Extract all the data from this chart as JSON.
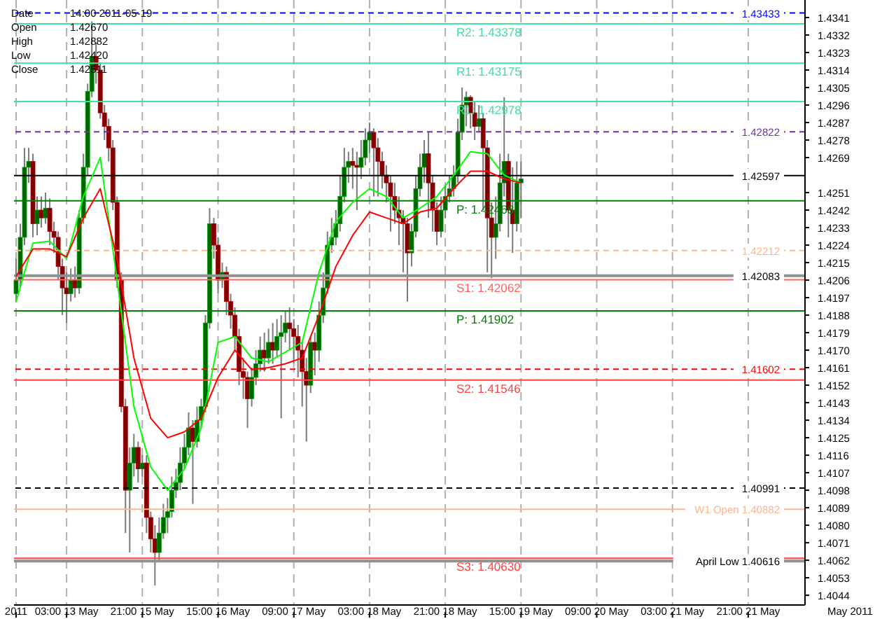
{
  "chart_data": {
    "type": "candlestick",
    "categories": [
      "2011",
      null,
      null,
      null,
      null,
      null,
      null,
      null,
      null,
      null,
      null,
      null,
      "03:00 13 May",
      null,
      null,
      null,
      null,
      null,
      null,
      null,
      null,
      null,
      null,
      null,
      null,
      null,
      null,
      null,
      null,
      null,
      "21:00 15 May",
      null,
      null,
      null,
      null,
      null,
      null,
      null,
      null,
      null,
      null,
      null,
      null,
      null,
      null,
      null,
      null,
      null,
      "15:00 16 May",
      null,
      null,
      null,
      null,
      null,
      null,
      null,
      null,
      null,
      null,
      null,
      null,
      null,
      null,
      null,
      null,
      null,
      "09:00 17 May",
      null,
      null,
      null,
      null,
      null,
      null,
      null,
      null,
      null,
      null,
      null,
      null,
      null,
      null,
      null,
      null,
      null,
      "03:00 18 May",
      null,
      null,
      null,
      null,
      null,
      null,
      null,
      null,
      null,
      null,
      null,
      null,
      null,
      null,
      null,
      null,
      null,
      "21:00 18 May",
      null,
      null,
      null,
      null,
      null,
      null,
      null,
      null,
      null,
      null,
      null,
      null,
      null,
      null,
      null,
      null,
      null,
      "15:00 19 May",
      null,
      null,
      null,
      null,
      null,
      null,
      null,
      null,
      null,
      null,
      null,
      null,
      null,
      null,
      null,
      null,
      null,
      "09:00 20 May",
      null,
      null,
      null,
      null,
      null,
      null,
      null,
      null,
      null,
      null,
      null,
      null,
      null,
      null,
      null,
      null,
      null,
      "03:00 21 May",
      null,
      null,
      null,
      null,
      null,
      null,
      null,
      null,
      null,
      null,
      null,
      null,
      null,
      null,
      null,
      null,
      null,
      "21:00 21 May",
      null,
      null,
      null,
      null,
      null,
      null,
      null,
      null,
      null,
      null,
      null,
      null,
      null
    ],
    "ohlc": [
      [
        1.4199,
        1.4217,
        1.4195,
        1.4206
      ],
      [
        1.4206,
        1.4235,
        1.4202,
        1.4228
      ],
      [
        1.4228,
        1.4274,
        1.4224,
        1.4264
      ],
      [
        1.4264,
        1.4274,
        1.4256,
        1.4267
      ],
      [
        1.4267,
        1.4271,
        1.4228,
        1.4235
      ],
      [
        1.4235,
        1.4249,
        1.4229,
        1.4242
      ],
      [
        1.4242,
        1.4249,
        1.4233,
        1.4238
      ],
      [
        1.4238,
        1.4251,
        1.4235,
        1.4243
      ],
      [
        1.4243,
        1.4248,
        1.4224,
        1.4231
      ],
      [
        1.4231,
        1.4236,
        1.422,
        1.4228
      ],
      [
        1.4228,
        1.4231,
        1.4206,
        1.4213
      ],
      [
        1.4213,
        1.4217,
        1.4188,
        1.4202
      ],
      [
        1.4202,
        1.421,
        1.4184,
        1.4199
      ],
      [
        1.4199,
        1.4212,
        1.4195,
        1.4206
      ],
      [
        1.4206,
        1.4213,
        1.4197,
        1.4202
      ],
      [
        1.4202,
        1.4242,
        1.4199,
        1.4238
      ],
      [
        1.4238,
        1.4271,
        1.4235,
        1.4264
      ],
      [
        1.4264,
        1.4307,
        1.426,
        1.4303
      ],
      [
        1.4303,
        1.4339,
        1.43,
        1.4321
      ],
      [
        1.4321,
        1.4328,
        1.4307,
        1.4314
      ],
      [
        1.4314,
        1.4318,
        1.4289,
        1.4292
      ],
      [
        1.4292,
        1.4296,
        1.4278,
        1.4285
      ],
      [
        1.4285,
        1.4289,
        1.4267,
        1.4274
      ],
      [
        1.4274,
        1.4278,
        1.4242,
        1.4246
      ],
      [
        1.4246,
        1.4249,
        1.4202,
        1.4206
      ],
      [
        1.4206,
        1.421,
        1.4138,
        1.4141
      ],
      [
        1.4141,
        1.4145,
        1.4076,
        1.4098
      ],
      [
        1.4098,
        1.412,
        1.4066,
        1.4112
      ],
      [
        1.4112,
        1.4127,
        1.4105,
        1.412
      ],
      [
        1.412,
        1.4123,
        1.4102,
        1.4109
      ],
      [
        1.4109,
        1.4116,
        1.4105,
        1.4112
      ],
      [
        1.4112,
        1.4116,
        1.4076,
        1.4084
      ],
      [
        1.4084,
        1.4087,
        1.4066,
        1.4073
      ],
      [
        1.4073,
        1.408,
        1.4049,
        1.4066
      ],
      [
        1.4066,
        1.4084,
        1.4062,
        1.4076
      ],
      [
        1.4076,
        1.4091,
        1.4073,
        1.4084
      ],
      [
        1.4084,
        1.4094,
        1.4076,
        1.4087
      ],
      [
        1.4087,
        1.4105,
        1.4084,
        1.4098
      ],
      [
        1.4098,
        1.4109,
        1.4094,
        1.4102
      ],
      [
        1.4102,
        1.412,
        1.4098,
        1.4112
      ],
      [
        1.4112,
        1.4127,
        1.4109,
        1.412
      ],
      [
        1.412,
        1.4138,
        1.4116,
        1.413
      ],
      [
        1.413,
        1.4134,
        1.4091,
        1.4123
      ],
      [
        1.4123,
        1.4141,
        1.412,
        1.4134
      ],
      [
        1.4134,
        1.4145,
        1.413,
        1.4141
      ],
      [
        1.4141,
        1.4188,
        1.4138,
        1.4184
      ],
      [
        1.4184,
        1.4243,
        1.4181,
        1.4235
      ],
      [
        1.4235,
        1.4238,
        1.4217,
        1.4224
      ],
      [
        1.4224,
        1.4228,
        1.4199,
        1.4206
      ],
      [
        1.4206,
        1.4215,
        1.4202,
        1.421
      ],
      [
        1.421,
        1.4213,
        1.4188,
        1.4195
      ],
      [
        1.4195,
        1.4199,
        1.4181,
        1.4188
      ],
      [
        1.4188,
        1.4192,
        1.417,
        1.4177
      ],
      [
        1.4177,
        1.4181,
        1.4152,
        1.4159
      ],
      [
        1.4159,
        1.4166,
        1.4145,
        1.4156
      ],
      [
        1.4156,
        1.4159,
        1.413,
        1.4145
      ],
      [
        1.4145,
        1.4161,
        1.4141,
        1.4156
      ],
      [
        1.4156,
        1.417,
        1.4152,
        1.4163
      ],
      [
        1.4163,
        1.4177,
        1.4159,
        1.417
      ],
      [
        1.417,
        1.4179,
        1.4159,
        1.4166
      ],
      [
        1.4166,
        1.4181,
        1.4163,
        1.4174
      ],
      [
        1.4174,
        1.4184,
        1.4163,
        1.417
      ],
      [
        1.417,
        1.4186,
        1.4166,
        1.4177
      ],
      [
        1.4177,
        1.4188,
        1.4135,
        1.4179
      ],
      [
        1.4179,
        1.419,
        1.4174,
        1.4184
      ],
      [
        1.4184,
        1.4192,
        1.417,
        1.4181
      ],
      [
        1.4181,
        1.4186,
        1.4163,
        1.4177
      ],
      [
        1.4177,
        1.4183,
        1.4156,
        1.417
      ],
      [
        1.417,
        1.4174,
        1.4141,
        1.4159
      ],
      [
        1.4159,
        1.4166,
        1.4123,
        1.4152
      ],
      [
        1.4152,
        1.4177,
        1.4148,
        1.4174
      ],
      [
        1.4174,
        1.4179,
        1.4157,
        1.417
      ],
      [
        1.417,
        1.4195,
        1.4164,
        1.4188
      ],
      [
        1.4188,
        1.421,
        1.4184,
        1.4202
      ],
      [
        1.4202,
        1.4231,
        1.4199,
        1.4224
      ],
      [
        1.4224,
        1.4238,
        1.422,
        1.4228
      ],
      [
        1.4228,
        1.4242,
        1.4224,
        1.4235
      ],
      [
        1.4235,
        1.426,
        1.4231,
        1.4249
      ],
      [
        1.4249,
        1.4274,
        1.4246,
        1.4264
      ],
      [
        1.4264,
        1.4272,
        1.4256,
        1.4267
      ],
      [
        1.4267,
        1.4274,
        1.4253,
        1.4265
      ],
      [
        1.4265,
        1.4272,
        1.4242,
        1.4264
      ],
      [
        1.4264,
        1.4278,
        1.4258,
        1.4269
      ],
      [
        1.4269,
        1.4284,
        1.4265,
        1.4278
      ],
      [
        1.4278,
        1.4287,
        1.4271,
        1.4282
      ],
      [
        1.4282,
        1.4284,
        1.4249,
        1.4274
      ],
      [
        1.4274,
        1.4279,
        1.4249,
        1.4267
      ],
      [
        1.4267,
        1.4272,
        1.4253,
        1.426
      ],
      [
        1.426,
        1.4265,
        1.4246,
        1.4256
      ],
      [
        1.4256,
        1.426,
        1.4231,
        1.4249
      ],
      [
        1.4249,
        1.4256,
        1.4235,
        1.4242
      ],
      [
        1.4242,
        1.4249,
        1.4224,
        1.4238
      ],
      [
        1.4238,
        1.4242,
        1.421,
        1.4235
      ],
      [
        1.4235,
        1.4238,
        1.4195,
        1.422
      ],
      [
        1.422,
        1.4235,
        1.4213,
        1.4231
      ],
      [
        1.4231,
        1.426,
        1.4228,
        1.4253
      ],
      [
        1.4253,
        1.4271,
        1.4249,
        1.4264
      ],
      [
        1.4264,
        1.4278,
        1.4256,
        1.4271
      ],
      [
        1.4271,
        1.4282,
        1.4238,
        1.4256
      ],
      [
        1.4256,
        1.426,
        1.4231,
        1.4242
      ],
      [
        1.4242,
        1.4246,
        1.4224,
        1.4231
      ],
      [
        1.4231,
        1.4249,
        1.4228,
        1.4242
      ],
      [
        1.4242,
        1.4255,
        1.4238,
        1.4249
      ],
      [
        1.4249,
        1.426,
        1.4246,
        1.4253
      ],
      [
        1.4253,
        1.4265,
        1.4249,
        1.426
      ],
      [
        1.426,
        1.4289,
        1.4256,
        1.4282
      ],
      [
        1.4282,
        1.4305,
        1.4278,
        1.4296
      ],
      [
        1.4296,
        1.4303,
        1.4285,
        1.43
      ],
      [
        1.43,
        1.4301,
        1.4284,
        1.4292
      ],
      [
        1.4292,
        1.4298,
        1.4278,
        1.4285
      ],
      [
        1.4285,
        1.4296,
        1.4282,
        1.4289
      ],
      [
        1.4289,
        1.4292,
        1.4242,
        1.4274
      ],
      [
        1.4274,
        1.4278,
        1.421,
        1.4238
      ],
      [
        1.4238,
        1.4246,
        1.4207,
        1.4228
      ],
      [
        1.4228,
        1.4249,
        1.4217,
        1.4235
      ],
      [
        1.4235,
        1.4271,
        1.4231,
        1.4256
      ],
      [
        1.4256,
        1.43,
        1.4249,
        1.4267
      ],
      [
        1.4267,
        1.4271,
        1.4228,
        1.4242
      ],
      [
        1.4242,
        1.4264,
        1.422,
        1.4235
      ],
      [
        1.4235,
        1.4267,
        1.4231,
        1.4256
      ],
      [
        1.4256,
        1.4267,
        1.4238,
        1.4258
      ],
      null,
      null,
      null,
      null,
      null,
      null,
      null,
      null,
      null,
      null,
      null,
      null,
      null,
      null,
      null,
      null,
      null,
      null,
      null,
      null,
      null,
      null,
      null,
      null,
      null,
      null,
      null,
      null,
      null,
      null,
      null,
      null,
      null,
      null,
      null,
      null,
      null,
      null,
      null,
      null,
      null,
      null,
      null,
      null,
      null,
      null,
      null,
      null,
      null,
      null,
      null,
      null,
      null,
      null,
      null,
      null,
      null,
      null,
      null,
      null,
      null,
      null,
      null,
      null,
      null,
      null,
      null
    ],
    "series": [
      {
        "type": "line",
        "color": "#00ff00",
        "values": [
          1.4195,
          null,
          null,
          null,
          1.4225,
          null,
          null,
          null,
          1.4226,
          null,
          null,
          null,
          1.4217,
          null,
          null,
          null,
          1.4249,
          null,
          null,
          null,
          1.4269,
          null,
          null,
          null,
          1.4206,
          null,
          null,
          null,
          1.4141,
          null,
          null,
          null,
          1.411,
          null,
          null,
          null,
          1.4098,
          null,
          null,
          null,
          1.4109,
          null,
          null,
          null,
          1.413,
          null,
          null,
          null,
          1.4174,
          null,
          null,
          null,
          1.4177,
          null,
          null,
          null,
          1.4166,
          null,
          null,
          null,
          1.4164,
          null,
          null,
          null,
          1.4169,
          null,
          null,
          null,
          1.4174,
          null,
          null,
          null,
          1.421,
          null,
          null,
          null,
          1.4236,
          null,
          null,
          null,
          1.4246,
          null,
          null,
          null,
          1.4253,
          null,
          null,
          null,
          1.4249,
          null,
          null,
          null,
          1.4238,
          null,
          null,
          null,
          1.4243,
          null,
          null,
          null,
          1.4249,
          null,
          null,
          null,
          1.426,
          null,
          null,
          null,
          1.4272,
          null,
          null,
          null,
          1.4271,
          null,
          null,
          null,
          1.426,
          null,
          null,
          null,
          1.4256,
          null,
          null,
          null,
          null,
          null,
          null,
          null,
          null,
          null,
          null,
          null,
          null,
          null,
          null,
          null,
          null,
          null,
          null,
          null,
          null,
          null,
          null,
          null,
          null,
          null,
          null,
          null,
          null,
          null,
          null,
          null,
          null,
          null,
          null,
          null,
          null,
          null,
          null,
          null,
          null,
          null,
          null,
          null,
          null,
          null,
          null,
          null,
          null,
          null,
          null,
          null,
          null,
          null,
          null,
          null,
          null,
          null,
          null,
          null,
          null,
          null,
          null,
          null,
          null,
          null,
          null,
          null
        ]
      },
      {
        "type": "line",
        "color": "#ff0000",
        "values": [
          1.4208,
          null,
          null,
          null,
          1.4222,
          null,
          null,
          null,
          1.4222,
          null,
          null,
          null,
          1.4218,
          null,
          null,
          null,
          1.4238,
          null,
          null,
          null,
          1.4253,
          null,
          null,
          null,
          1.4217,
          null,
          null,
          null,
          1.4166,
          null,
          null,
          null,
          1.4135,
          null,
          null,
          null,
          1.4125,
          null,
          null,
          null,
          1.4128,
          null,
          null,
          null,
          1.4135,
          null,
          null,
          null,
          1.4156,
          null,
          null,
          null,
          1.417,
          null,
          null,
          null,
          1.416,
          null,
          null,
          null,
          1.4161,
          null,
          null,
          null,
          1.4163,
          null,
          null,
          null,
          1.4166,
          null,
          null,
          null,
          1.4188,
          null,
          null,
          null,
          1.4213,
          null,
          null,
          null,
          1.4229,
          null,
          null,
          null,
          1.4241,
          null,
          null,
          null,
          1.4238,
          null,
          null,
          null,
          1.4235,
          null,
          null,
          null,
          1.4241,
          null,
          null,
          null,
          1.4243,
          null,
          null,
          null,
          1.4253,
          null,
          null,
          null,
          1.4262,
          null,
          null,
          null,
          1.4262,
          null,
          null,
          null,
          1.4258,
          null,
          null,
          null,
          1.4256,
          null,
          null,
          null,
          null,
          null,
          null,
          null,
          null,
          null,
          null,
          null,
          null,
          null,
          null,
          null,
          null,
          null,
          null,
          null,
          null,
          null,
          null,
          null,
          null,
          null,
          null,
          null,
          null,
          null,
          null,
          null,
          null,
          null,
          null,
          null,
          null,
          null,
          null,
          null,
          null,
          null,
          null,
          null,
          null,
          null,
          null,
          null,
          null,
          null,
          null,
          null,
          null,
          null,
          null,
          null,
          null,
          null,
          null,
          null,
          null,
          null,
          null,
          null,
          null,
          null,
          null,
          null
        ]
      }
    ],
    "ylim": [
      1.4039,
      1.435
    ],
    "yticks": [
      1.4341,
      1.4332,
      1.4323,
      1.4314,
      1.4305,
      1.4296,
      1.4287,
      1.4278,
      1.4269,
      1.4251,
      1.4242,
      1.4233,
      1.4224,
      1.4215,
      1.4206,
      1.4197,
      1.4188,
      1.4179,
      {
        "value": 1.417,
        "label": "1.4170"
      },
      1.4161,
      1.4152,
      1.4143,
      1.4134,
      1.4125,
      1.4116,
      1.4107,
      1.4098,
      1.4089,
      {
        "value": 1.408,
        "label": "1.4080"
      },
      1.4071,
      1.4062,
      1.4053,
      1.4044
    ],
    "grid": "x",
    "ref_lines": [
      {
        "axis": "y",
        "value": 1.43433,
        "label": "1.43433",
        "color": "#0000ff",
        "line_style": "dashed"
      },
      {
        "axis": "y",
        "value": 1.42822,
        "label": "1.42822",
        "color": "#7030a0",
        "line_style": "dashed"
      },
      {
        "axis": "y",
        "value": 1.42597,
        "label": "1.42597",
        "color": "#000000",
        "line_style": "solid"
      },
      {
        "axis": "y",
        "value": 1.42212,
        "label": "1.42212",
        "color": "#ffb48a",
        "line_style": "dashed"
      },
      {
        "axis": "y",
        "value": 1.42083,
        "label": "1.42083",
        "color": "#909090",
        "line_style": "solid"
      },
      {
        "axis": "y",
        "value": 1.41602,
        "label": "1.41602",
        "color": "#ff0000",
        "line_style": "dashed"
      },
      {
        "axis": "y",
        "value": 1.40991,
        "label": "1.40991",
        "color": "#000000",
        "line_style": "dashed"
      },
      {
        "axis": "y",
        "value": 1.40882,
        "label": "W1 Open 1.40882",
        "color": "#ffb48a",
        "line_style": "solid"
      },
      {
        "axis": "y",
        "value": 1.40616,
        "label": "April Low 1.40616",
        "color": "#909090",
        "line_style": "solid"
      },
      {
        "axis": "y",
        "value": 1.43378,
        "label": "R2: 1.43378",
        "color": "#40e0a0",
        "line_style": "solid"
      },
      {
        "axis": "y",
        "value": 1.43175,
        "label": "R1: 1.43175",
        "color": "#40e0a0",
        "line_style": "solid"
      },
      {
        "axis": "y",
        "value": 1.42978,
        "label": "R1: 1.42978",
        "color": "#40e0a0",
        "line_style": "solid"
      },
      {
        "axis": "y",
        "value": 1.42468,
        "label": "P: 1.42468",
        "color": "#008000",
        "line_style": "solid"
      },
      {
        "axis": "y",
        "value": 1.41902,
        "label": "P: 1.41902",
        "color": "#008000",
        "line_style": "solid"
      },
      {
        "axis": "y",
        "value": 1.42062,
        "label": "S1: 1.42062",
        "color": "#ff6060",
        "line_style": "solid"
      },
      {
        "axis": "y",
        "value": 1.41546,
        "label": "S2: 1.41546",
        "color": "#ff4040",
        "line_style": "solid"
      },
      {
        "axis": "y",
        "value": 1.4063,
        "label": "S3: 1.40630",
        "color": "#ff4040",
        "line_style": "solid"
      }
    ],
    "annotations": [
      "Date",
      "14:00 2011-05-19",
      "Open",
      "1.42670",
      "High",
      "1.42882",
      "Low",
      "1.42420",
      "Close",
      "1.42511",
      "May 2011"
    ]
  }
}
